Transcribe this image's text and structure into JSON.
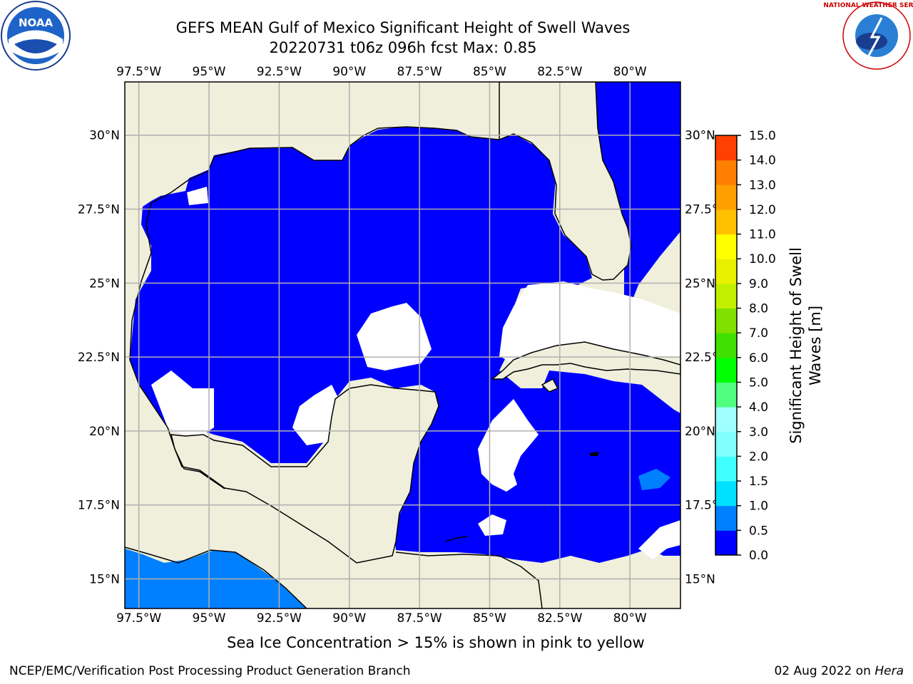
{
  "title": {
    "line1": "GEFS MEAN Gulf of Mexico Significant Height of Swell Waves",
    "line2": "20220731 t06z 096h fcst   Max: 0.85"
  },
  "logos": {
    "left": {
      "name": "noaa-logo",
      "text": "NOAA"
    },
    "right": {
      "name": "nws-logo",
      "text": "NATIONAL WEATHER SERVICE"
    }
  },
  "map": {
    "lon_labels": [
      "97.5°W",
      "95°W",
      "92.5°W",
      "90°W",
      "87.5°W",
      "85°W",
      "82.5°W",
      "80°W"
    ],
    "lon_values": [
      -97.5,
      -95,
      -92.5,
      -90,
      -87.5,
      -85,
      -82.5,
      -80
    ],
    "lat_labels": [
      "30°N",
      "27.5°N",
      "25°N",
      "22.5°N",
      "20°N",
      "17.5°N",
      "15°N"
    ],
    "lat_values": [
      30,
      27.5,
      25,
      22.5,
      20,
      17.5,
      15
    ],
    "lon_range": [
      -98,
      -78.2
    ],
    "lat_range": [
      14,
      31.8
    ],
    "land_color": "#efefdc",
    "grid_color": "#b0b0b0"
  },
  "colorbar": {
    "label": "Significant Height of Swell Waves [m]",
    "ticks": [
      "0.0",
      "0.5",
      "1.0",
      "1.5",
      "2.0",
      "3.0",
      "4.0",
      "5.0",
      "6.0",
      "7.0",
      "8.0",
      "9.0",
      "10.0",
      "11.0",
      "12.0",
      "13.0",
      "14.0",
      "15.0"
    ],
    "colors": [
      "#0000ff",
      "#0080ff",
      "#00e0ff",
      "#40ffff",
      "#80ffff",
      "#a0ffff",
      "#50ff80",
      "#00ff00",
      "#40e000",
      "#80e000",
      "#c0f000",
      "#e8f000",
      "#ffff00",
      "#ffc000",
      "#ffa000",
      "#ff8000",
      "#ff4000",
      "#ff0000"
    ]
  },
  "note": "Sea Ice Concentration > 15% is shown in pink to yellow",
  "footer": {
    "left": "NCEP/EMC/Verification Post Processing Product Generation Branch",
    "right_prefix": "02 Aug 2022 on ",
    "right_host": "Hera"
  }
}
